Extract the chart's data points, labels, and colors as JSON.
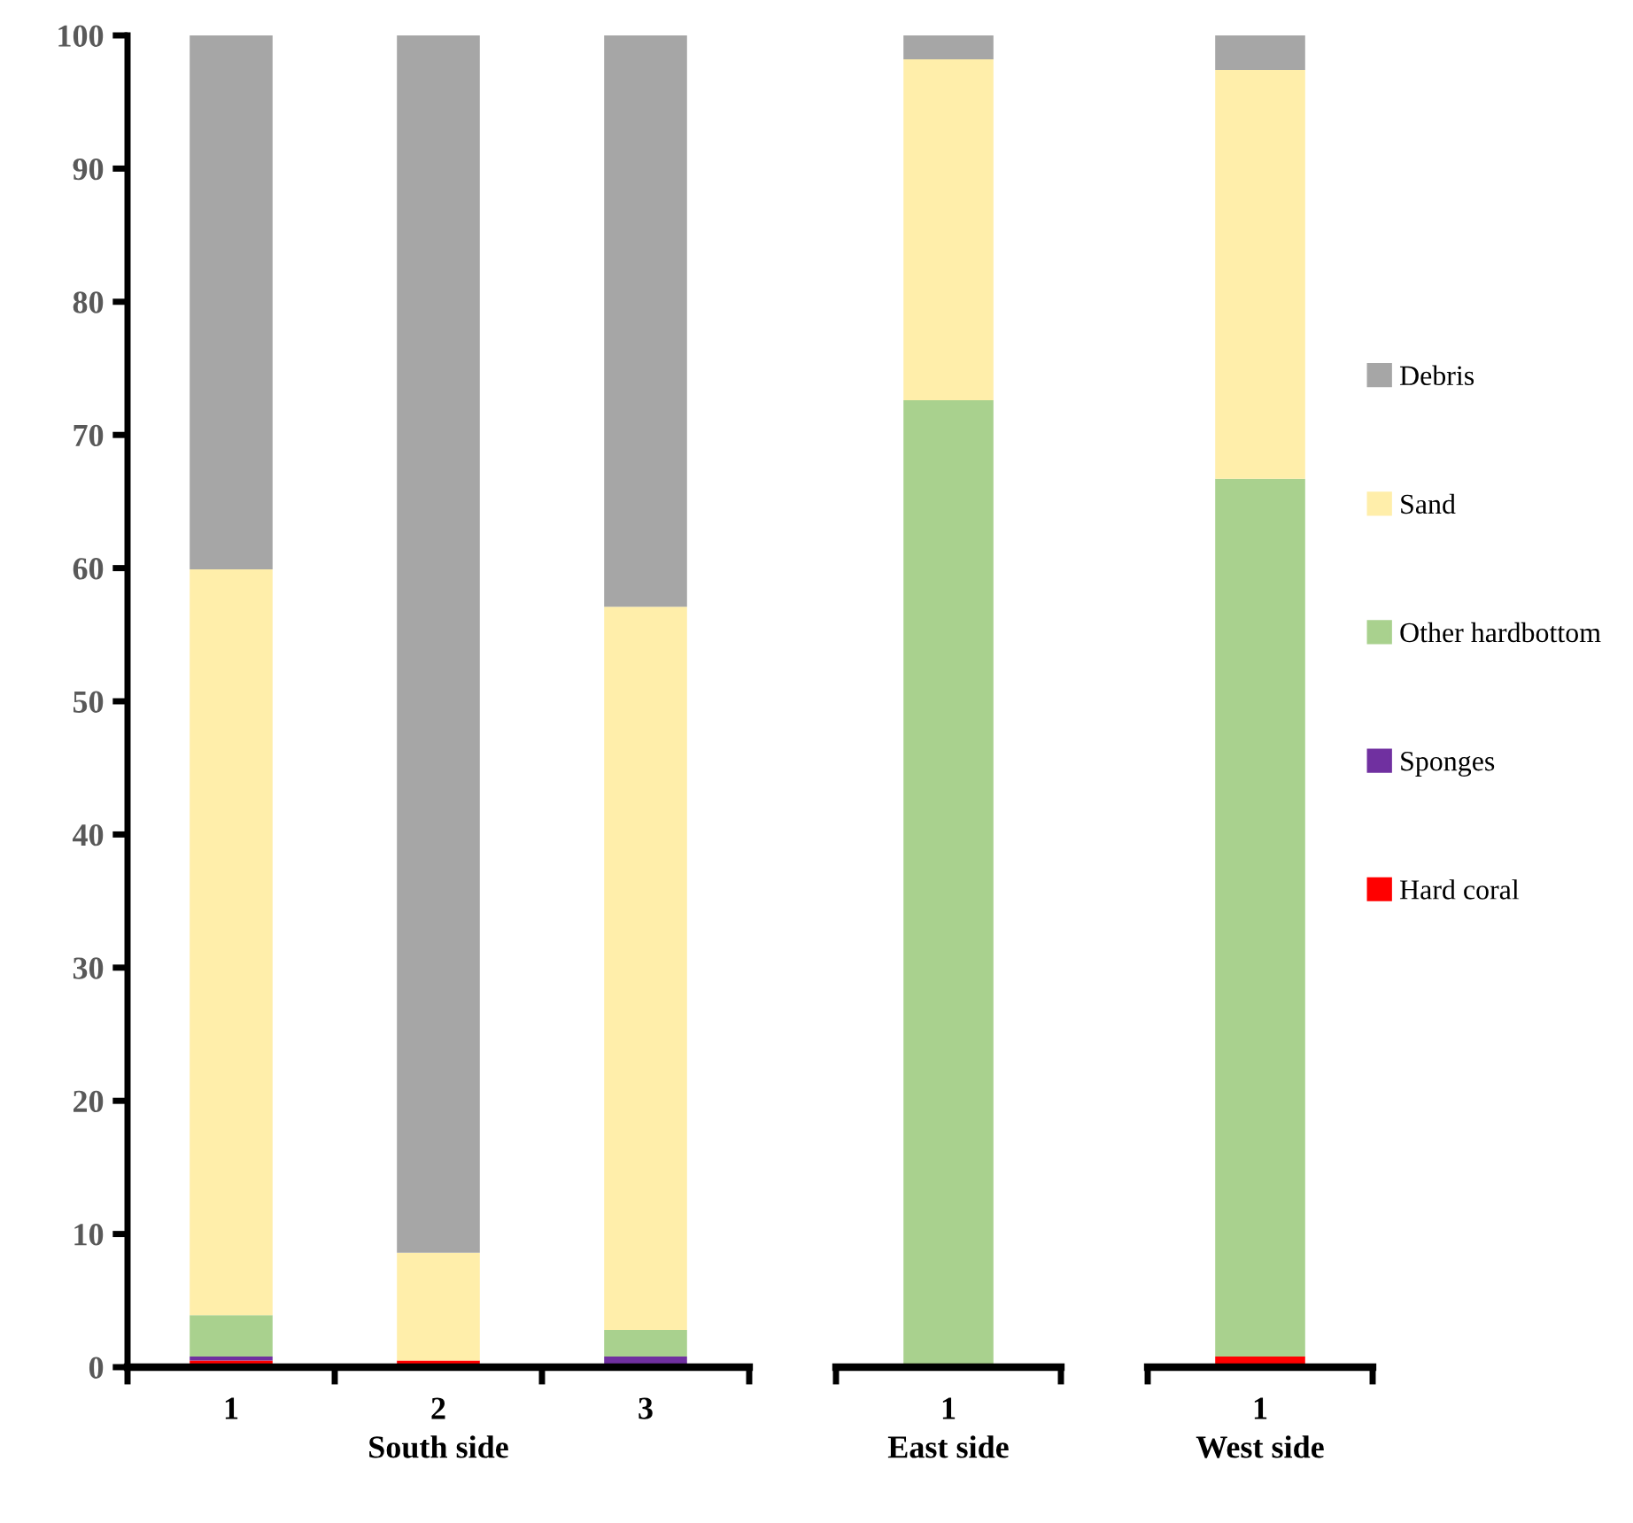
{
  "chart_data": [
    {
      "type": "bar",
      "stacked": true,
      "xlabel": "South side",
      "categories": [
        "1",
        "2",
        "3"
      ],
      "ylim": [
        0,
        100
      ],
      "yticks": [
        0,
        10,
        20,
        30,
        40,
        50,
        60,
        70,
        80,
        90,
        100
      ],
      "grid": false,
      "series": [
        {
          "color": "#ff0000",
          "values": [
            0.5,
            0.5,
            0
          ]
        },
        {
          "color": "#7030a0",
          "values": [
            0.3,
            0,
            0.8
          ]
        },
        {
          "color": "#a9d18e",
          "values": [
            3.1,
            0,
            2.0
          ]
        },
        {
          "color": "#ffeeaa",
          "values": [
            56.0,
            8.1,
            54.3
          ]
        },
        {
          "color": "#a6a6a6",
          "values": [
            40.1,
            91.4,
            42.9
          ]
        }
      ]
    },
    {
      "type": "bar",
      "stacked": true,
      "xlabel": "East side",
      "categories": [
        "1"
      ],
      "ylim": [
        0,
        100
      ],
      "tick_labels": "x",
      "grid": false,
      "series": [
        {
          "color": "#ff0000",
          "values": [
            0
          ]
        },
        {
          "color": "#7030a0",
          "values": [
            0
          ]
        },
        {
          "color": "#a9d18e",
          "values": [
            72.6
          ]
        },
        {
          "color": "#ffeeaa",
          "values": [
            25.6
          ]
        },
        {
          "color": "#a6a6a6",
          "values": [
            1.8
          ]
        }
      ]
    },
    {
      "type": "bar",
      "stacked": true,
      "xlabel": "West side",
      "categories": [
        "1"
      ],
      "ylim": [
        0,
        100
      ],
      "tick_labels": "x",
      "grid": false,
      "legend": "right",
      "series": [
        {
          "name": "Hard coral",
          "color": "#ff0000",
          "values": [
            0.8
          ]
        },
        {
          "name": "Sponges",
          "color": "#7030a0",
          "values": [
            0
          ]
        },
        {
          "name": "Other hardbottom",
          "color": "#a9d18e",
          "values": [
            65.9
          ]
        },
        {
          "name": "Sand",
          "color": "#ffeeaa",
          "values": [
            30.7
          ]
        },
        {
          "name": "Debris",
          "color": "#a6a6a6",
          "values": [
            2.6
          ]
        }
      ]
    }
  ]
}
